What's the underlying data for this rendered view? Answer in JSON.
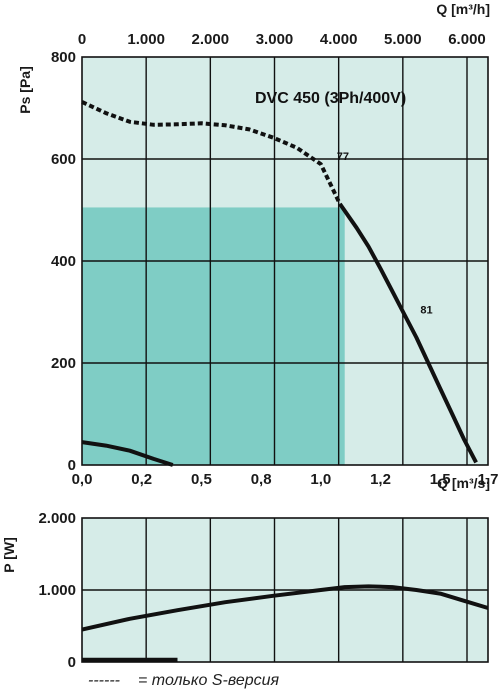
{
  "chart_data": [
    {
      "type": "line",
      "title": "DVC 450 (3Ph/400V)",
      "ylabel": "Ps [Pa]",
      "xlabel": "Q [m³/s]",
      "x2label": "Q [m³/h]",
      "xlim": [
        0,
        1.7
      ],
      "ylim": [
        0,
        800
      ],
      "x_ticks": [
        "0,0",
        "0,2",
        "0,5",
        "0,8",
        "1,0",
        "1,2",
        "1,5",
        "1,7"
      ],
      "x_tick_values": [
        0.0,
        0.25,
        0.5,
        0.75,
        1.0,
        1.25,
        1.5,
        1.7
      ],
      "x2_ticks": [
        "0",
        "1.000",
        "2.000",
        "3.000",
        "4.000",
        "5.000",
        "6.000"
      ],
      "x2_tick_values": [
        0,
        1000,
        2000,
        3000,
        4000,
        5000,
        6000
      ],
      "y_ticks": [
        "0",
        "200",
        "400",
        "600",
        "800"
      ],
      "y_tick_values": [
        0,
        200,
        400,
        600,
        800
      ],
      "shaded_region": {
        "x": [
          0,
          1.1
        ],
        "y": [
          0,
          505
        ],
        "color": "#7fcdc5"
      },
      "background_color": "#d6ece8",
      "series": [
        {
          "style": "dashed",
          "x": [
            0.0,
            0.1,
            0.2,
            0.3,
            0.4,
            0.5,
            0.6,
            0.7,
            0.8,
            0.9,
            1.0,
            1.08
          ],
          "y": [
            712,
            690,
            673,
            667,
            668,
            670,
            666,
            658,
            642,
            622,
            590,
            512
          ]
        },
        {
          "style": "solid",
          "x": [
            1.08,
            1.15,
            1.2,
            1.25,
            1.3,
            1.35,
            1.4,
            1.45,
            1.5,
            1.55,
            1.6,
            1.65
          ],
          "y": [
            512,
            465,
            428,
            385,
            340,
            295,
            250,
            200,
            150,
            100,
            50,
            5
          ]
        },
        {
          "style": "solid",
          "x": [
            0.0,
            0.1,
            0.2,
            0.3,
            0.38
          ],
          "y": [
            45,
            38,
            28,
            12,
            0
          ]
        }
      ],
      "annotations": [
        {
          "text": "77",
          "x": 1.05,
          "y": 590
        },
        {
          "text": "81",
          "x": 1.4,
          "y": 305
        }
      ]
    },
    {
      "type": "line",
      "ylabel": "P [W]",
      "xlim": [
        0,
        1.7
      ],
      "ylim": [
        0,
        2000
      ],
      "y_ticks": [
        "0",
        "1.000",
        "2.000"
      ],
      "y_tick_values": [
        0,
        1000,
        2000
      ],
      "background_color": "#d6ece8",
      "series": [
        {
          "style": "solid",
          "x": [
            0.0,
            0.2,
            0.4,
            0.6,
            0.8,
            1.0,
            1.1,
            1.2,
            1.3,
            1.4,
            1.5,
            1.6,
            1.7
          ],
          "y": [
            450,
            600,
            720,
            830,
            920,
            1000,
            1040,
            1050,
            1040,
            1000,
            950,
            850,
            750
          ]
        },
        {
          "style": "solid",
          "x": [
            0.0,
            0.4
          ],
          "y": [
            30,
            30
          ]
        }
      ]
    }
  ],
  "legend": {
    "line": "------",
    "text": "= только S-версия"
  }
}
